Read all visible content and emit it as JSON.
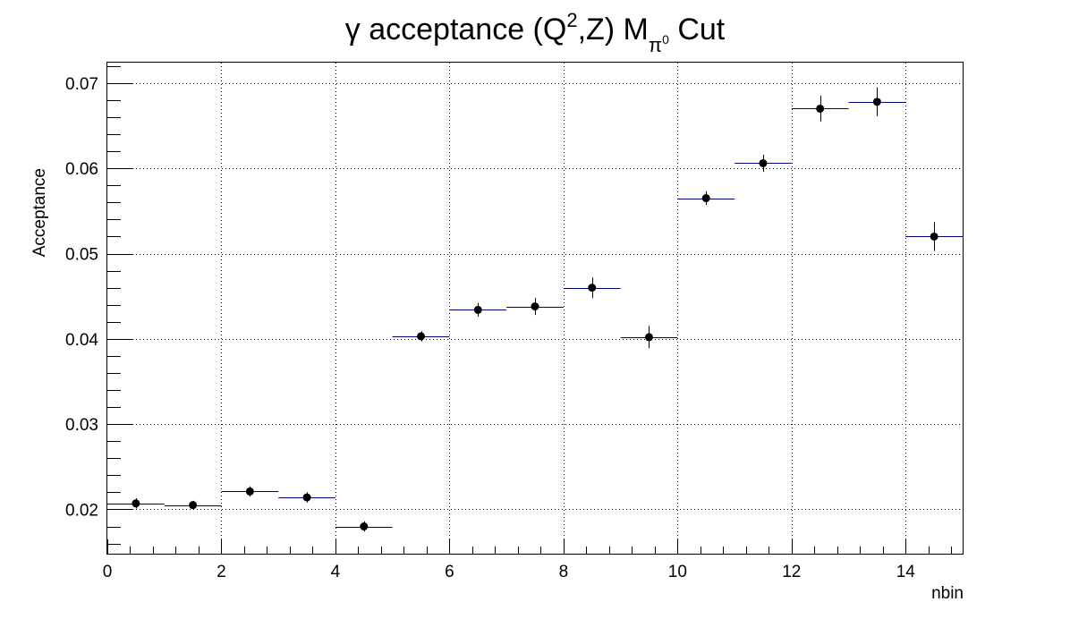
{
  "chart_data": {
    "type": "scatter",
    "title": {
      "prefix": "γ acceptance (Q",
      "sup": "2",
      "middle": ",Z)  M",
      "sub": "π",
      "subsup": "0",
      "suffix": " Cut"
    },
    "xlabel": "nbin",
    "ylabel": "Acceptance",
    "xlim": [
      0,
      15
    ],
    "ylim": [
      0.0148,
      0.0724
    ],
    "grid": true,
    "x_ticks": [
      0,
      2,
      4,
      6,
      8,
      10,
      12,
      14
    ],
    "x_tick_labels": [
      "0",
      "2",
      "4",
      "6",
      "8",
      "10",
      "12",
      "14"
    ],
    "y_ticks": [
      0.02,
      0.03,
      0.04,
      0.05,
      0.06,
      0.07
    ],
    "y_tick_labels": [
      "0.02",
      "0.03",
      "0.04",
      "0.05",
      "0.06",
      "0.07"
    ],
    "points": [
      {
        "x": 0.5,
        "y": 0.0207,
        "xerr": 0.5,
        "yerr": 0.0006
      },
      {
        "x": 1.5,
        "y": 0.0205,
        "xerr": 0.5,
        "yerr": 0.0005
      },
      {
        "x": 2.5,
        "y": 0.0221,
        "xerr": 0.5,
        "yerr": 0.0006
      },
      {
        "x": 3.5,
        "y": 0.0214,
        "xerr": 0.5,
        "yerr": 0.0006
      },
      {
        "x": 4.5,
        "y": 0.018,
        "xerr": 0.5,
        "yerr": 0.0006
      },
      {
        "x": 5.5,
        "y": 0.0403,
        "xerr": 0.5,
        "yerr": 0.0006
      },
      {
        "x": 6.5,
        "y": 0.0434,
        "xerr": 0.5,
        "yerr": 0.0008
      },
      {
        "x": 7.5,
        "y": 0.0438,
        "xerr": 0.5,
        "yerr": 0.001
      },
      {
        "x": 8.5,
        "y": 0.046,
        "xerr": 0.5,
        "yerr": 0.0012
      },
      {
        "x": 9.5,
        "y": 0.0402,
        "xerr": 0.5,
        "yerr": 0.0013
      },
      {
        "x": 10.5,
        "y": 0.0565,
        "xerr": 0.5,
        "yerr": 0.0008
      },
      {
        "x": 11.5,
        "y": 0.0606,
        "xerr": 0.5,
        "yerr": 0.001
      },
      {
        "x": 12.5,
        "y": 0.067,
        "xerr": 0.5,
        "yerr": 0.0015
      },
      {
        "x": 13.5,
        "y": 0.0678,
        "xerr": 0.5,
        "yerr": 0.0017
      },
      {
        "x": 14.5,
        "y": 0.052,
        "xerr": 0.5,
        "yerr": 0.0017
      }
    ],
    "colors": {
      "marker": "#000000",
      "horizontal_error": "#00007f",
      "vertical_error": "#000000",
      "grid": "#000000",
      "frame": "#000000"
    }
  }
}
